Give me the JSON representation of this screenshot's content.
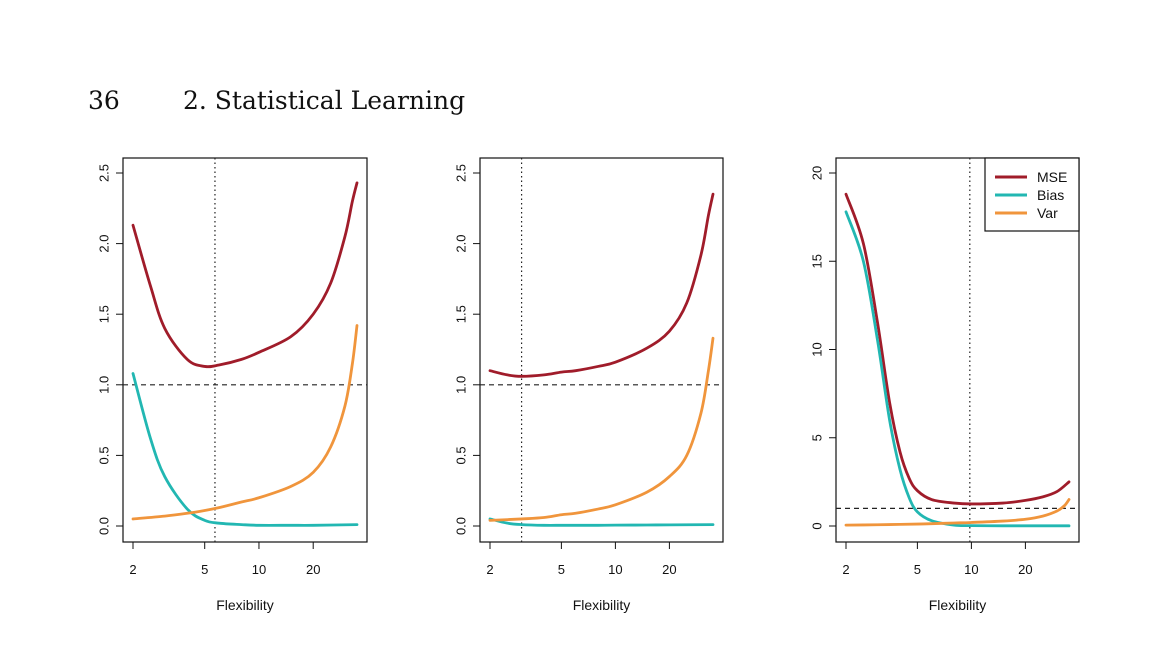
{
  "header": {
    "page_number": "36",
    "chapter_title": "2.  Statistical Learning"
  },
  "colors": {
    "MSE": "#a01c2a",
    "Bias": "#22b7b2",
    "Var": "#f0953c"
  },
  "chart_data": [
    {
      "type": "line",
      "xlabel": "Flexibility",
      "x_scale": "log",
      "x_ticks": [
        2,
        5,
        10,
        20
      ],
      "xlim": [
        2,
        35
      ],
      "y_ticks": [
        "0.0",
        "0.5",
        "1.0",
        "1.5",
        "2.0",
        "2.5"
      ],
      "ylim": [
        0,
        2.5
      ],
      "hline": 1.0,
      "vline": 5.7,
      "series": [
        {
          "name": "MSE",
          "x": [
            2,
            2.5,
            3,
            4,
            5,
            6,
            8,
            10,
            15,
            20,
            25,
            30,
            33,
            35
          ],
          "y": [
            2.13,
            1.7,
            1.4,
            1.18,
            1.13,
            1.14,
            1.18,
            1.23,
            1.34,
            1.5,
            1.72,
            2.05,
            2.3,
            2.43
          ]
        },
        {
          "name": "Bias",
          "x": [
            2,
            2.5,
            3,
            4,
            5,
            6,
            8,
            10,
            15,
            20,
            35
          ],
          "y": [
            1.08,
            0.62,
            0.35,
            0.12,
            0.04,
            0.02,
            0.01,
            0.005,
            0.005,
            0.005,
            0.01
          ]
        },
        {
          "name": "Var",
          "x": [
            2,
            3,
            4,
            5,
            6,
            8,
            10,
            15,
            20,
            25,
            30,
            33,
            35
          ],
          "y": [
            0.05,
            0.07,
            0.09,
            0.11,
            0.13,
            0.17,
            0.2,
            0.28,
            0.38,
            0.56,
            0.85,
            1.15,
            1.42
          ]
        }
      ]
    },
    {
      "type": "line",
      "xlabel": "Flexibility",
      "x_scale": "log",
      "x_ticks": [
        2,
        5,
        10,
        20
      ],
      "xlim": [
        2,
        35
      ],
      "y_ticks": [
        "0.0",
        "0.5",
        "1.0",
        "1.5",
        "2.0",
        "2.5"
      ],
      "ylim": [
        0,
        2.5
      ],
      "hline": 1.0,
      "vline": 3.0,
      "series": [
        {
          "name": "MSE",
          "x": [
            2,
            2.5,
            3,
            4,
            5,
            6,
            8,
            10,
            15,
            20,
            25,
            30,
            33,
            35
          ],
          "y": [
            1.1,
            1.07,
            1.06,
            1.07,
            1.09,
            1.1,
            1.13,
            1.16,
            1.26,
            1.38,
            1.58,
            1.92,
            2.2,
            2.35
          ]
        },
        {
          "name": "Bias",
          "x": [
            2,
            2.5,
            3,
            4,
            5,
            6,
            8,
            10,
            15,
            20,
            35
          ],
          "y": [
            0.05,
            0.02,
            0.01,
            0.005,
            0.005,
            0.005,
            0.005,
            0.006,
            0.007,
            0.008,
            0.01
          ]
        },
        {
          "name": "Var",
          "x": [
            2,
            3,
            4,
            5,
            6,
            8,
            10,
            15,
            20,
            25,
            30,
            33,
            35
          ],
          "y": [
            0.04,
            0.05,
            0.06,
            0.08,
            0.09,
            0.12,
            0.15,
            0.24,
            0.35,
            0.5,
            0.8,
            1.1,
            1.33
          ]
        }
      ]
    },
    {
      "type": "line",
      "xlabel": "Flexibility",
      "x_scale": "log",
      "x_ticks": [
        2,
        5,
        10,
        20
      ],
      "xlim": [
        2,
        35
      ],
      "y_ticks": [
        "0",
        "5",
        "10",
        "15",
        "20"
      ],
      "ylim": [
        0,
        20
      ],
      "hline": 1.0,
      "vline": 9.8,
      "legend": {
        "position": "top-right",
        "entries": [
          "MSE",
          "Bias",
          "Var"
        ]
      },
      "series": [
        {
          "name": "MSE",
          "x": [
            2,
            2.5,
            3,
            3.5,
            4,
            4.5,
            5,
            6,
            8,
            10,
            15,
            20,
            25,
            30,
            35
          ],
          "y": [
            18.8,
            16,
            11.5,
            7,
            4.2,
            2.7,
            2,
            1.5,
            1.3,
            1.25,
            1.3,
            1.45,
            1.65,
            1.95,
            2.5
          ]
        },
        {
          "name": "Bias",
          "x": [
            2,
            2.5,
            3,
            3.5,
            4,
            4.5,
            5,
            6,
            8,
            10,
            15,
            20,
            25,
            30,
            35
          ],
          "y": [
            17.8,
            15,
            10.5,
            6,
            3.2,
            1.6,
            0.8,
            0.3,
            0.05,
            0.02,
            0.01,
            0.01,
            0.01,
            0.01,
            0.01
          ]
        },
        {
          "name": "Var",
          "x": [
            2,
            3,
            4,
            5,
            6,
            8,
            10,
            15,
            20,
            25,
            30,
            33,
            35
          ],
          "y": [
            0.05,
            0.07,
            0.09,
            0.11,
            0.13,
            0.17,
            0.2,
            0.28,
            0.38,
            0.56,
            0.85,
            1.15,
            1.5
          ]
        }
      ]
    }
  ]
}
